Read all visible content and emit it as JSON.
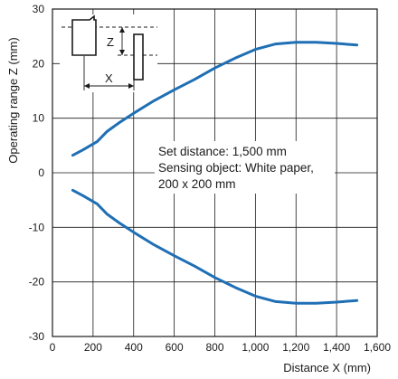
{
  "chart_data": {
    "type": "line",
    "title": "",
    "xlabel": "Distance X (mm)",
    "ylabel": "Operating range Z (mm)",
    "xlim": [
      0,
      1600
    ],
    "ylim": [
      -30,
      30
    ],
    "x_ticks": [
      0,
      200,
      400,
      600,
      800,
      1000,
      1200,
      1400,
      1600
    ],
    "x_tick_labels": [
      "0",
      "200",
      "400",
      "600",
      "800",
      "1,000",
      "1,200",
      "1,400",
      "1,600"
    ],
    "y_ticks": [
      -30,
      -20,
      -10,
      0,
      10,
      20,
      30
    ],
    "y_tick_labels": [
      "-30",
      "-20",
      "-10",
      "0",
      "10",
      "20",
      "30"
    ],
    "grid": true,
    "legend": "none",
    "series": [
      {
        "color": "#1f6fb5",
        "x": [
          100,
          150,
          220,
          270,
          330,
          400,
          500,
          600,
          700,
          800,
          900,
          1000,
          1100,
          1200,
          1300,
          1400,
          1500
        ],
        "y": [
          3.2,
          4.2,
          5.7,
          7.6,
          9.2,
          10.9,
          13.2,
          15.2,
          17.1,
          19.2,
          21.0,
          22.6,
          23.6,
          23.9,
          23.9,
          23.7,
          23.4
        ]
      },
      {
        "color": "#1f6fb5",
        "x": [
          100,
          150,
          220,
          270,
          330,
          400,
          500,
          600,
          700,
          800,
          900,
          1000,
          1100,
          1200,
          1300,
          1400,
          1500
        ],
        "y": [
          -3.2,
          -4.2,
          -5.7,
          -7.6,
          -9.2,
          -10.9,
          -13.2,
          -15.2,
          -17.1,
          -19.2,
          -21.0,
          -22.6,
          -23.6,
          -23.9,
          -23.9,
          -23.7,
          -23.4
        ]
      }
    ],
    "annotation": {
      "lines": [
        "Set distance: 1,500 mm",
        "Sensing object: White paper,",
        "200 x 200 mm"
      ]
    },
    "inset": {
      "z_label": "Z",
      "x_label": "X"
    }
  }
}
